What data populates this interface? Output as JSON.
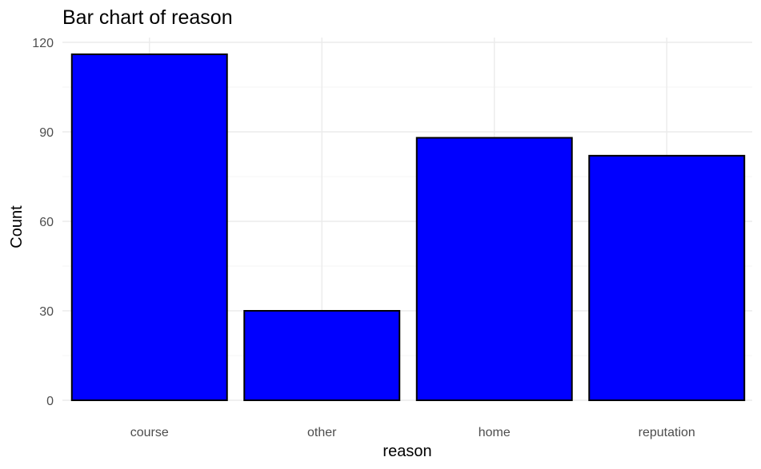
{
  "chart_data": {
    "type": "bar",
    "title": "Bar chart of reason",
    "xlabel": "reason",
    "ylabel": "Count",
    "categories": [
      "course",
      "other",
      "home",
      "reputation"
    ],
    "values": [
      116,
      30,
      88,
      82
    ],
    "ylim": [
      0,
      120
    ],
    "yticks": [
      0,
      30,
      60,
      90,
      120
    ],
    "yticks_minor": [
      15,
      45,
      75,
      105
    ],
    "bar_fill": "#0000ff",
    "bar_outline": "#000000",
    "grid": true,
    "legend": "none"
  }
}
